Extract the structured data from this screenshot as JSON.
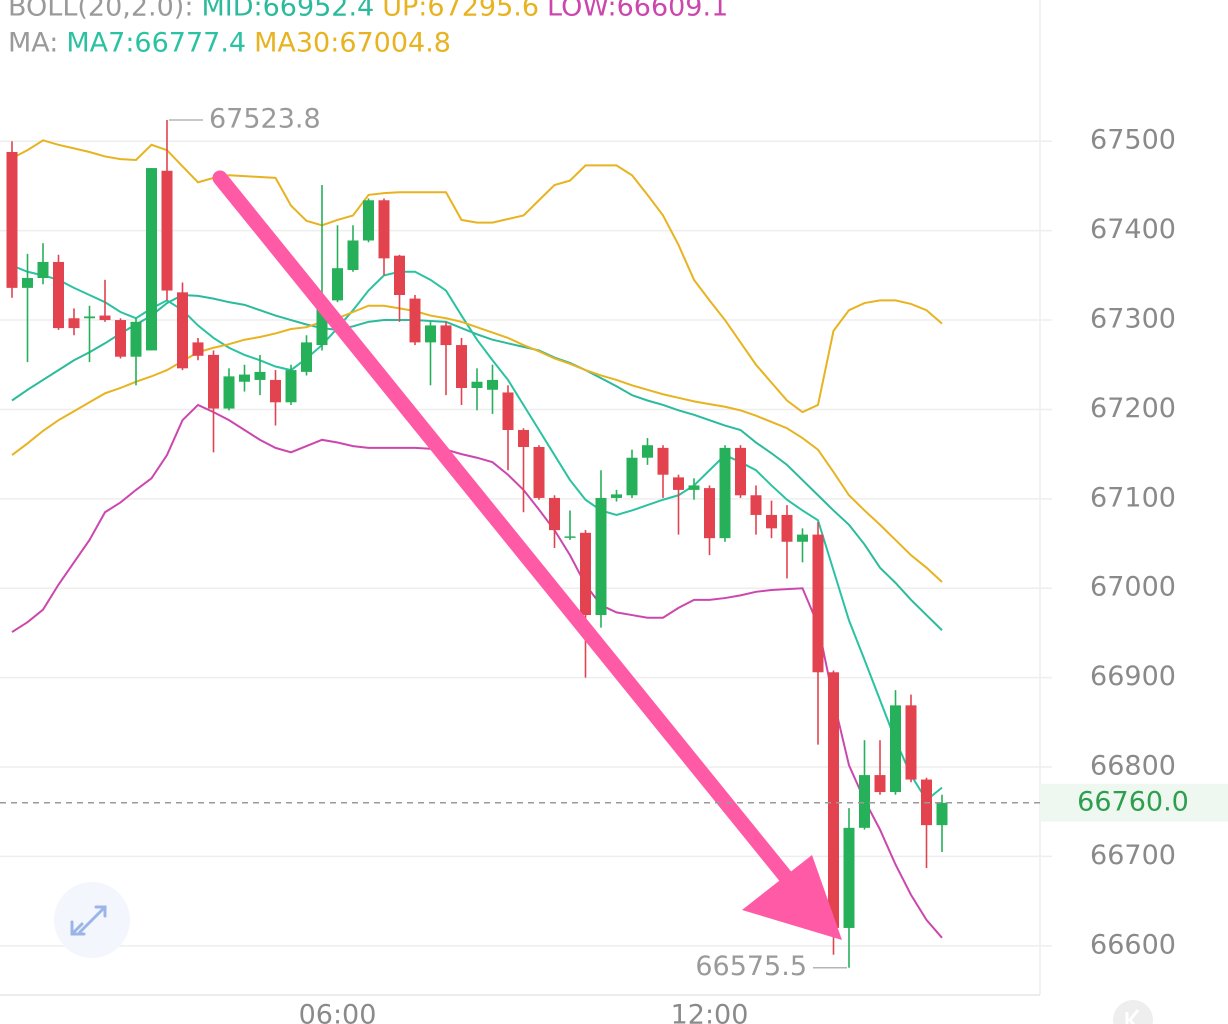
{
  "chart_data": {
    "type": "candlestick",
    "indicators": [
      {
        "label": "BOLL(20,2.0):",
        "series": [
          {
            "name": "MID:66952.4",
            "color": "#2bbb9c",
            "values": [
              67210,
              67222,
              67233,
              67244,
              67255,
              67264,
              67274,
              67285,
              67295,
              67305,
              67319,
              67328,
              67327,
              67324,
              67320,
              67317,
              67311,
              67305,
              67300,
              67295,
              67291,
              67289,
              67293,
              67298,
              67300,
              67300,
              67300,
              67299,
              67298,
              67291,
              67284,
              67278,
              67274,
              67270,
              67266,
              67258,
              67252,
              67244,
              67235,
              67226,
              67216,
              67210,
              67205,
              67199,
              67194,
              67188,
              67182,
              67177,
              67163,
              67151,
              67138,
              67121,
              67104,
              67087,
              67071,
              67049,
              67023,
              67006,
              66987,
              66970,
              66953
            ]
          },
          {
            "name": "UP:67295.6",
            "color": "#e8b320",
            "values": [
              67481,
              67490,
              67501,
              67496,
              67492,
              67488,
              67483,
              67480,
              67479,
              67496,
              67490,
              67472,
              67454,
              67459,
              67462,
              67461,
              67460,
              67459,
              67428,
              67411,
              67406,
              67412,
              67417,
              67440,
              67442,
              67443,
              67443,
              67443,
              67443,
              67412,
              67409,
              67409,
              67413,
              67417,
              67434,
              67451,
              67456,
              67473,
              67473,
              67473,
              67462,
              67440,
              67417,
              67384,
              67345,
              67322,
              67300,
              67275,
              67250,
              67230,
              67210,
              67197,
              67205,
              67288,
              67311,
              67319,
              67322,
              67322,
              67318,
              67311,
              67296
            ]
          },
          {
            "name": "LOW:66609.1",
            "color": "#cc47ad",
            "values": [
              66951,
              66962,
              66976,
              67004,
              67029,
              67054,
              67085,
              67096,
              67110,
              67123,
              67149,
              67188,
              67205,
              67197,
              67188,
              67177,
              67166,
              67157,
              67152,
              67159,
              67166,
              67163,
              67159,
              67157,
              67157,
              67157,
              67157,
              67156,
              67155,
              67150,
              67146,
              67141,
              67127,
              67110,
              67088,
              67065,
              67037,
              67004,
              66981,
              66973,
              66970,
              66967,
              66967,
              66978,
              66987,
              66987,
              66989,
              66992,
              66996,
              66998,
              66999,
              67000,
              66959,
              66875,
              66802,
              66763,
              66730,
              66691,
              66657,
              66629,
              66609
            ]
          }
        ]
      },
      {
        "label": "MA:",
        "series": [
          {
            "name": "MA7:66777.4",
            "color": "#2bc2a2",
            "values": [
              67361,
              67354,
              67350,
              67345,
              67336,
              67328,
              67320,
              67309,
              67302,
              67313,
              67322,
              67311,
              67294,
              67280,
              67269,
              67261,
              67255,
              67248,
              67244,
              67257,
              67272,
              67291,
              67311,
              67333,
              67350,
              67354,
              67354,
              67345,
              67333,
              67305,
              67278,
              67255,
              67233,
              67205,
              67177,
              67149,
              67121,
              67099,
              67087,
              67082,
              67087,
              67093,
              67099,
              67104,
              67115,
              67132,
              67149,
              67141,
              67132,
              67115,
              67099,
              67087,
              67076,
              67020,
              66964,
              66920,
              66875,
              66830,
              66791,
              66763,
              66777
            ]
          },
          {
            "name": "MA30:67004.8",
            "color": "#e8b320",
            "values": [
              67149,
              67162,
              67176,
              67188,
              67198,
              67208,
              67218,
              67224,
              67231,
              67237,
              67244,
              67254,
              67264,
              67269,
              67273,
              67278,
              67281,
              67285,
              67290,
              67292,
              67298,
              67302,
              67309,
              67316,
              67316,
              67313,
              67310,
              67305,
              67302,
              67298,
              67292,
              67286,
              67280,
              67272,
              67265,
              67257,
              67251,
              67244,
              67238,
              67233,
              67227,
              67222,
              67217,
              67213,
              67209,
              67206,
              67203,
              67199,
              67193,
              67186,
              67179,
              67168,
              67155,
              67130,
              67104,
              67087,
              67071,
              67054,
              67037,
              67023,
              67007
            ]
          }
        ]
      }
    ],
    "categories": [
      null,
      null,
      null,
      null,
      null,
      null,
      null,
      null,
      null,
      null,
      null,
      null,
      null,
      null,
      null,
      null,
      null,
      null,
      null,
      null,
      null,
      "06:00",
      null,
      null,
      null,
      null,
      null,
      null,
      null,
      null,
      null,
      null,
      null,
      null,
      null,
      null,
      null,
      null,
      null,
      null,
      null,
      null,
      null,
      null,
      null,
      "12:00",
      null,
      null,
      null,
      null,
      null,
      null,
      null,
      null,
      null,
      null,
      null,
      null,
      null,
      null,
      null
    ],
    "open": [
      67488,
      67336,
      67347,
      67365,
      67302,
      67302,
      67305,
      67300,
      67259,
      67266,
      67467,
      67331,
      67275,
      67261,
      67201,
      67231,
      67233,
      67233,
      67208,
      67242,
      67272,
      67322,
      67356,
      67389,
      67434,
      67372,
      67324,
      67275,
      67294,
      67272,
      67224,
      67222,
      67219,
      67177,
      67158,
      67101,
      67057,
      67062,
      66970,
      67101,
      67104,
      67146,
      67157,
      67124,
      67110,
      67112,
      67056,
      67157,
      67104,
      67082,
      67082,
      67052,
      67060,
      66906,
      66620,
      66732,
      66791,
      66772,
      66869,
      66786,
      66735
    ],
    "high": [
      67500,
      67374,
      67386,
      67373,
      67313,
      67316,
      67345,
      67302,
      67302,
      67470,
      67523.8,
      67342,
      67280,
      67266,
      67246,
      67250,
      67261,
      67244,
      67250,
      67283,
      67451,
      67406,
      67406,
      67436,
      67436,
      67373,
      67328,
      67298,
      67298,
      67280,
      67246,
      67250,
      67227,
      67179,
      67160,
      67104,
      67087,
      67065,
      67132,
      67110,
      67155,
      67168,
      67160,
      67127,
      67123,
      67115,
      67160,
      67160,
      67115,
      67098,
      67093,
      67067,
      67074,
      66908,
      66754,
      66830,
      66830,
      66886,
      66881,
      66788,
      66769
    ],
    "low": [
      67325,
      67253,
      67340,
      67289,
      67283,
      67253,
      67298,
      67257,
      67227,
      67266,
      67322,
      67244,
      67255,
      67152,
      67199,
      67220,
      67216,
      67182,
      67205,
      67238,
      67266,
      67320,
      67354,
      67387,
      67350,
      67298,
      67272,
      67227,
      67216,
      67205,
      67199,
      67195,
      67132,
      67085,
      67099,
      67045,
      67054,
      66900,
      66956,
      67097,
      67101,
      67138,
      67101,
      67060,
      67099,
      67037,
      67052,
      67101,
      67060,
      67056,
      67011,
      67029,
      66825,
      66590,
      66575.5,
      66730,
      66769,
      66769,
      66783,
      66687,
      66705
    ],
    "close": [
      67336,
      67347,
      67365,
      67291,
      67291,
      67304,
      67300,
      67259,
      67298,
      67470,
      67333,
      67246,
      67260,
      67201,
      67237,
      67239,
      67242,
      67208,
      67244,
      67275,
      67322,
      67358,
      67389,
      67434,
      67369,
      67328,
      67275,
      67294,
      67272,
      67224,
      67231,
      67233,
      67177,
      67158,
      67101,
      67065,
      67058,
      66970,
      67101,
      67105,
      67146,
      67160,
      67127,
      67110,
      67115,
      67056,
      67157,
      67104,
      67082,
      67067,
      67052,
      67060,
      66906,
      66620,
      66732,
      66791,
      66772,
      66869,
      66786,
      66735,
      66760
    ],
    "up_color": "#27b05a",
    "down_color": "#e2434e",
    "last_price": {
      "value": 66760,
      "label": "66760.0"
    },
    "ylim": [
      66545,
      67658
    ],
    "yticks": [
      66600,
      66700,
      66800,
      66900,
      67000,
      67100,
      67200,
      67300,
      67400,
      67500
    ],
    "grid": true
  }
}
